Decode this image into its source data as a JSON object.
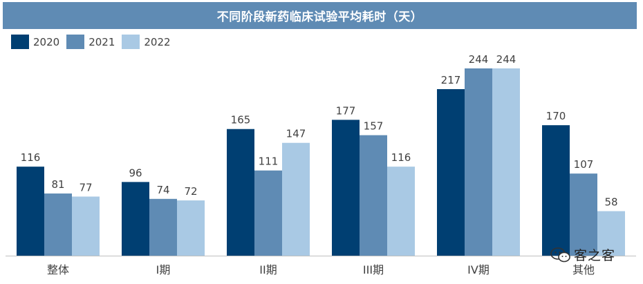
{
  "watermark": {
    "text": "客之客",
    "icon": "wechat-icon"
  },
  "chart_data": {
    "type": "bar",
    "title": "不同阶段新药临床试验平均耗时（天）",
    "categories": [
      "整体",
      "I期",
      "II期",
      "III期",
      "IV期",
      "其他"
    ],
    "series": [
      {
        "name": "2020",
        "color": "#003f72",
        "values": [
          116,
          96,
          165,
          177,
          217,
          170
        ]
      },
      {
        "name": "2021",
        "color": "#5f8bb4",
        "values": [
          81,
          74,
          111,
          157,
          244,
          107
        ]
      },
      {
        "name": "2022",
        "color": "#a9c9e4",
        "values": [
          77,
          72,
          147,
          116,
          244,
          58
        ]
      }
    ],
    "ylim": [
      0,
      244
    ],
    "legend": "top-left",
    "grid": false,
    "data_labels": true
  }
}
